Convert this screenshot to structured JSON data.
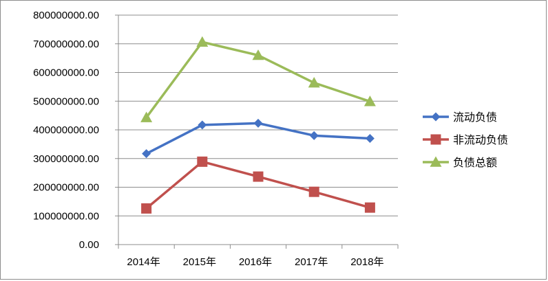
{
  "chart_data": {
    "type": "line",
    "title": "",
    "xlabel": "",
    "ylabel": "",
    "categories": [
      "2014年",
      "2015年",
      "2016年",
      "2017年",
      "2018年"
    ],
    "y_ticks": [
      "0.00",
      "100000000.00",
      "200000000.00",
      "300000000.00",
      "400000000.00",
      "500000000.00",
      "600000000.00",
      "700000000.00",
      "800000000.00"
    ],
    "ylim": [
      0,
      800000000
    ],
    "grid": "horizontal",
    "legend_position": "right",
    "series": [
      {
        "name": "流动负债",
        "marker": "diamond",
        "color": "#4472c4",
        "values": [
          317000000,
          417000000,
          423000000,
          380000000,
          370000000
        ]
      },
      {
        "name": "非流动负债",
        "marker": "square",
        "color": "#c0504d",
        "values": [
          126000000,
          289000000,
          237000000,
          184000000,
          129000000
        ]
      },
      {
        "name": "负债总额",
        "marker": "triangle",
        "color": "#9bbb59",
        "values": [
          443000000,
          706000000,
          660000000,
          564000000,
          499000000
        ]
      }
    ]
  }
}
